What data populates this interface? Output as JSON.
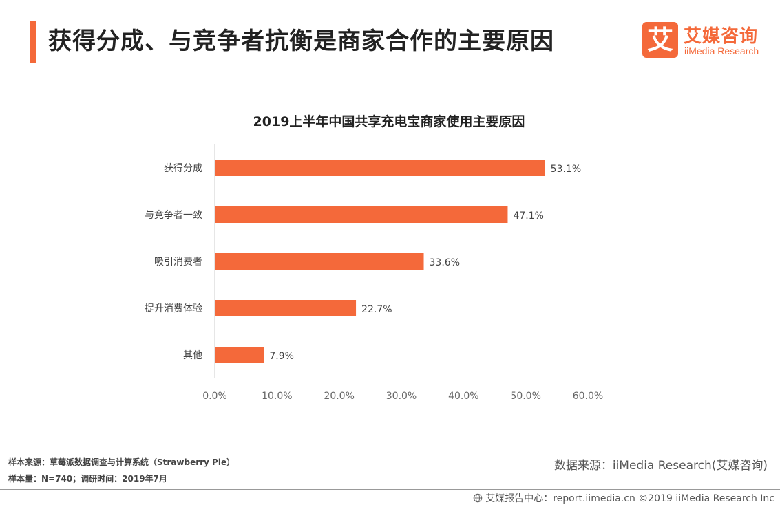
{
  "header": {
    "title": "获得分成、与竞争者抗衡是商家合作的主要原因",
    "accent_color": "#f4693a"
  },
  "logo": {
    "mark": "艾",
    "name_cn": "艾媒咨询",
    "name_en": "iiMedia Research"
  },
  "chart_data": {
    "type": "bar",
    "orientation": "horizontal",
    "title": "2019上半年中国共享充电宝商家使用主要原因",
    "categories": [
      "获得分成",
      "与竞争者一致",
      "吸引消费者",
      "提升消费体验",
      "其他"
    ],
    "values": [
      53.1,
      47.1,
      33.6,
      22.7,
      7.9
    ],
    "value_labels": [
      "53.1%",
      "47.1%",
      "33.6%",
      "22.7%",
      "7.9%"
    ],
    "xlim": [
      0,
      60
    ],
    "xticks": [
      0,
      10,
      20,
      30,
      40,
      50,
      60
    ],
    "xtick_labels": [
      "0.0%",
      "10.0%",
      "20.0%",
      "30.0%",
      "40.0%",
      "50.0%",
      "60.0%"
    ],
    "bar_color": "#f4693a",
    "grid": false,
    "legend": "none"
  },
  "notes": {
    "sample_source": "样本来源：草莓派数据调查与计算系统（Strawberry  Pie）",
    "sample_size": "样本量：N=740；调研时间：2019年7月"
  },
  "source": "数据来源：iiMedia Research(艾媒咨询)",
  "footer": {
    "text": "艾媒报告中心：report.iimedia.cn  ©2019  iiMedia Research  Inc",
    "icon": "globe-icon"
  }
}
